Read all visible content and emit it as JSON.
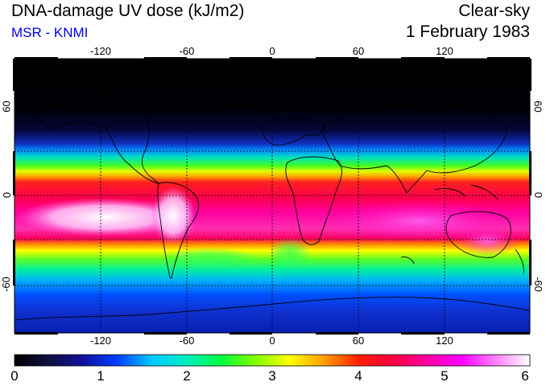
{
  "header": {
    "title": "DNA-damage UV dose (kJ/m2)",
    "source": "MSR - KNMI",
    "sky": "Clear-sky",
    "date": "1 February 1983"
  },
  "colors": {
    "source_text": "#0000ee",
    "colormap": [
      "#000000",
      "#101040",
      "#1010a0",
      "#0040ff",
      "#00c8ff",
      "#00f0c0",
      "#00ff40",
      "#80ff00",
      "#ffff00",
      "#ffa000",
      "#ff2000",
      "#ff0040",
      "#ff00a0",
      "#ff00ff",
      "#ff80ff",
      "#ffffff"
    ]
  },
  "map": {
    "lon_ticks": [
      "-120",
      "-60",
      "0",
      "60",
      "120"
    ],
    "lat_ticks": [
      "60",
      "0",
      "-60"
    ]
  },
  "colorbar": {
    "range": [
      0,
      6
    ],
    "labels": [
      "0",
      "1",
      "2",
      "3",
      "4",
      "5",
      "6"
    ]
  }
}
